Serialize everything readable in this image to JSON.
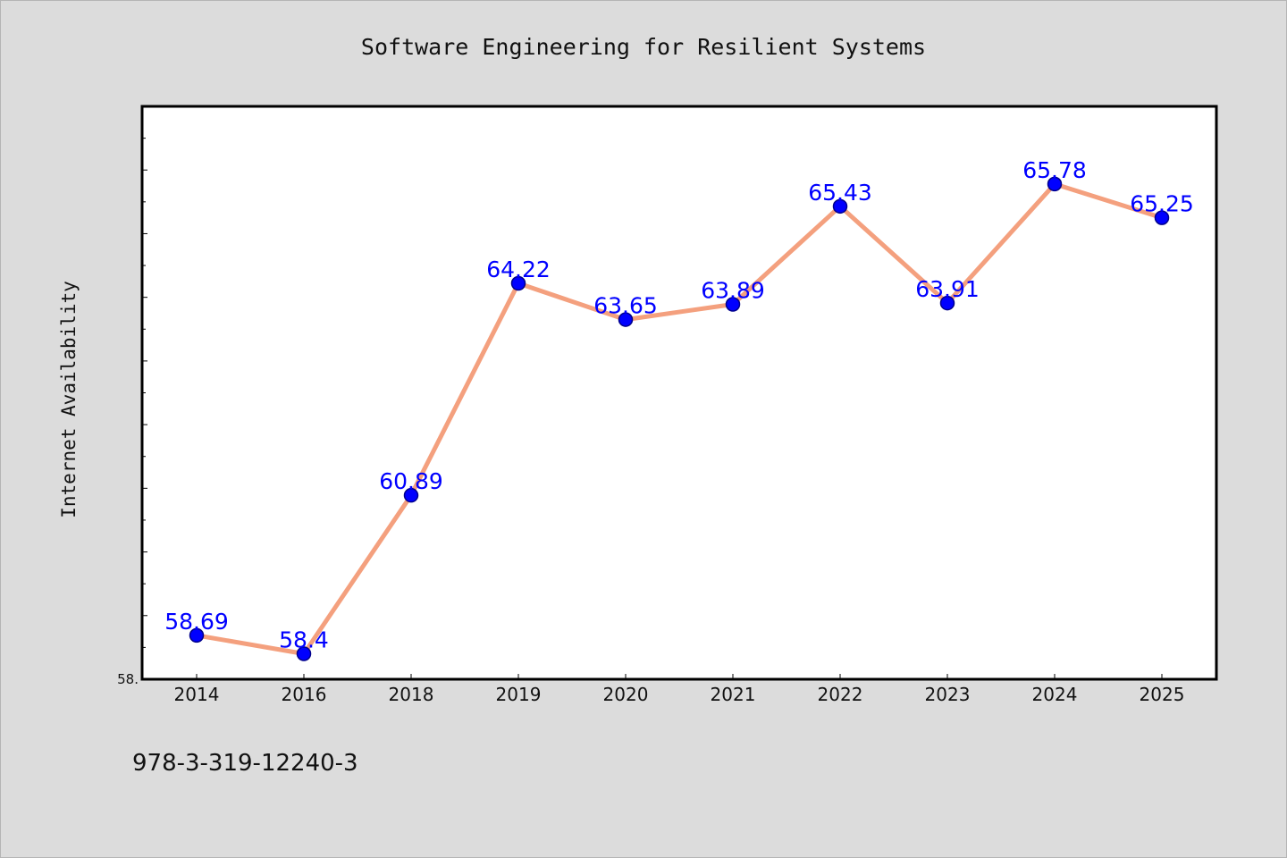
{
  "chart_data": {
    "type": "line",
    "title": "Software Engineering for Resilient Systems",
    "xlabel": "",
    "ylabel": "Internet Availability",
    "categories": [
      "2014",
      "2016",
      "2018",
      "2019",
      "2020",
      "2021",
      "2022",
      "2023",
      "2024",
      "2025"
    ],
    "values": [
      58.69,
      58.4,
      60.89,
      64.22,
      63.65,
      63.89,
      65.43,
      63.91,
      65.78,
      65.25
    ],
    "data_labels": [
      "58.69",
      "58.4",
      "60.89",
      "64.22",
      "63.65",
      "63.89",
      "65.43",
      "63.91",
      "65.78",
      "65.25"
    ],
    "ylim": [
      58.0,
      67.0
    ],
    "ytick_labels": [
      {
        "value": 58.0,
        "label": "58."
      }
    ],
    "grid": false,
    "legend": "none",
    "colors": {
      "line": "#f4a07e",
      "marker": "#0000ff",
      "marker_edge": "#00008b",
      "data_label": "#0000ff",
      "background": "#dcdcdc",
      "plot_background": "#ffffff"
    }
  },
  "footer": {
    "isbn": "978-3-319-12240-3"
  }
}
